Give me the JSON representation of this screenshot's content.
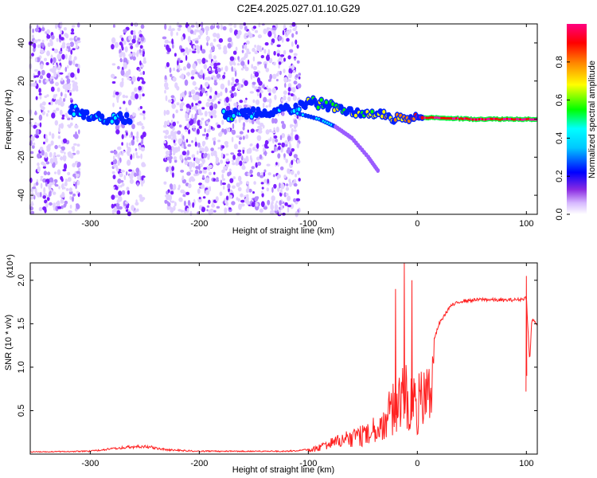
{
  "title": "C2E4.2025.027.01.10.G29",
  "chart_data": [
    {
      "type": "heatmap",
      "xlabel": "Height of straight line (km)",
      "ylabel": "Frequency (Hz)",
      "xlim": [
        -355,
        110
      ],
      "ylim": [
        -50,
        50
      ],
      "xticks": [
        -300,
        -200,
        -100,
        0,
        100
      ],
      "yticks": [
        -40,
        -20,
        0,
        20,
        40
      ],
      "colorbar": {
        "label": "Normalized spectral amplitude",
        "range": [
          0,
          1
        ],
        "ticks": [
          0.0,
          0.2,
          0.4,
          0.6,
          0.8
        ],
        "tick_labels": [
          "0.0",
          "0.2",
          "0.4",
          "0.6",
          "0.8"
        ],
        "colormap": [
          "#ffffff",
          "#c8a0ff",
          "#7a00ff",
          "#0000ff",
          "#00ffff",
          "#00ff00",
          "#ffff00",
          "#ff8000",
          "#ff0000",
          "#ff00a0"
        ]
      },
      "noise_regions": [
        [
          -355,
          -310
        ],
        [
          -280,
          -250
        ],
        [
          -232,
          -108
        ]
      ],
      "main_trace": [
        {
          "x": -318,
          "y": 5,
          "amp": 0.35
        },
        {
          "x": -300,
          "y": 2,
          "amp": 0.3
        },
        {
          "x": -280,
          "y": 0,
          "amp": 0.35
        },
        {
          "x": -265,
          "y": 1,
          "amp": 0.3
        },
        {
          "x": -170,
          "y": 2,
          "amp": 0.35
        },
        {
          "x": -140,
          "y": 4,
          "amp": 0.3
        },
        {
          "x": -110,
          "y": 6,
          "amp": 0.35
        },
        {
          "x": -100,
          "y": 9,
          "amp": 0.5
        },
        {
          "x": -85,
          "y": 8,
          "amp": 0.45
        },
        {
          "x": -70,
          "y": 5,
          "amp": 0.5
        },
        {
          "x": -55,
          "y": 3,
          "amp": 0.55
        },
        {
          "x": -40,
          "y": 2,
          "amp": 0.6
        },
        {
          "x": -20,
          "y": 1,
          "amp": 0.7
        },
        {
          "x": 0,
          "y": 1,
          "amp": 0.85
        },
        {
          "x": 50,
          "y": 0,
          "amp": 0.9
        },
        {
          "x": 110,
          "y": 0,
          "amp": 0.85
        }
      ],
      "secondary_trace": [
        {
          "x": -110,
          "y": 3
        },
        {
          "x": -90,
          "y": 0
        },
        {
          "x": -75,
          "y": -4
        },
        {
          "x": -60,
          "y": -10
        },
        {
          "x": -45,
          "y": -20
        },
        {
          "x": -35,
          "y": -28
        }
      ]
    },
    {
      "type": "line",
      "xlabel": "Height of straight line (km)",
      "ylabel": "SNR (10 * v/v)",
      "scale_label": "(x10⁴)",
      "xlim": [
        -355,
        110
      ],
      "ylim": [
        0,
        2.2
      ],
      "xticks": [
        -300,
        -200,
        -100,
        0,
        100
      ],
      "yticks": [
        0.5,
        1.0,
        1.5,
        2.0
      ],
      "ytick_labels": [
        "0.5",
        "1.0",
        "1.5",
        "2.0"
      ],
      "color": "#ff2020",
      "series": [
        {
          "envelope": [
            {
              "x": -355,
              "y": 0.03
            },
            {
              "x": -300,
              "y": 0.04
            },
            {
              "x": -270,
              "y": 0.09
            },
            {
              "x": -250,
              "y": 0.11
            },
            {
              "x": -230,
              "y": 0.06
            },
            {
              "x": -200,
              "y": 0.04
            },
            {
              "x": -150,
              "y": 0.04
            },
            {
              "x": -120,
              "y": 0.04
            },
            {
              "x": -100,
              "y": 0.06
            },
            {
              "x": -80,
              "y": 0.18
            },
            {
              "x": -60,
              "y": 0.3
            },
            {
              "x": -45,
              "y": 0.35
            },
            {
              "x": -30,
              "y": 0.6
            },
            {
              "x": -20,
              "y": 0.9
            },
            {
              "x": -10,
              "y": 1.05
            },
            {
              "x": 0,
              "y": 0.9
            },
            {
              "x": 10,
              "y": 1.1
            },
            {
              "x": 20,
              "y": 1.5
            },
            {
              "x": 30,
              "y": 1.7
            },
            {
              "x": 40,
              "y": 1.76
            },
            {
              "x": 60,
              "y": 1.78
            },
            {
              "x": 80,
              "y": 1.77
            },
            {
              "x": 95,
              "y": 1.78
            },
            {
              "x": 100,
              "y": 1.8
            },
            {
              "x": 103,
              "y": 1.05
            },
            {
              "x": 105,
              "y": 1.55
            },
            {
              "x": 110,
              "y": 1.5
            }
          ],
          "peaks": [
            {
              "x": -20,
              "y": 1.9
            },
            {
              "x": -12,
              "y": 2.2
            },
            {
              "x": -5,
              "y": 2.0
            },
            {
              "x": 100,
              "y": 2.05
            }
          ]
        }
      ]
    }
  ]
}
